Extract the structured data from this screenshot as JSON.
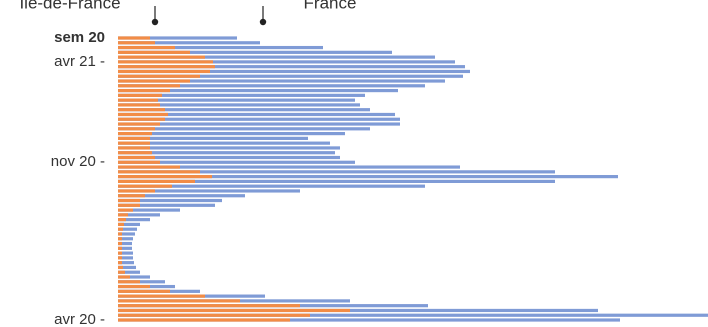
{
  "chart_data": {
    "type": "bar",
    "orientation": "horizontal",
    "categories": [
      "sem 20",
      null,
      null,
      null,
      null,
      "avr 21 -",
      null,
      null,
      null,
      null,
      null,
      null,
      null,
      null,
      null,
      null,
      null,
      null,
      null,
      null,
      null,
      null,
      null,
      null,
      null,
      null,
      "nov 20 -",
      null,
      null,
      null,
      null,
      null,
      null,
      null,
      null,
      null,
      null,
      null,
      null,
      null,
      null,
      null,
      null,
      null,
      null,
      null,
      null,
      null,
      null,
      null,
      null,
      null,
      null,
      null,
      null,
      null,
      null,
      null,
      null,
      "avr 20 -"
    ],
    "series": [
      {
        "name": "France",
        "color": "#7f9bd6",
        "values": [
          119,
          142,
          205,
          274,
          317,
          337,
          347,
          352,
          345,
          327,
          307,
          280,
          247,
          237,
          242,
          252,
          277,
          282,
          282,
          252,
          227,
          190,
          212,
          222,
          217,
          222,
          237,
          342,
          437,
          500,
          437,
          307,
          182,
          127,
          104,
          97,
          62,
          42,
          32,
          22,
          19,
          17,
          15,
          14,
          14,
          15,
          15,
          16,
          18,
          22,
          32,
          47,
          57,
          82,
          147,
          232,
          310,
          480,
          590,
          502
        ]
      },
      {
        "name": "Île-de-France",
        "color": "#f28c46",
        "values": [
          32,
          37,
          57,
          72,
          87,
          95,
          97,
          92,
          82,
          72,
          62,
          52,
          44,
          40,
          42,
          47,
          50,
          47,
          42,
          37,
          34,
          32,
          32,
          32,
          34,
          37,
          42,
          62,
          82,
          94,
          77,
          54,
          37,
          27,
          22,
          22,
          15,
          10,
          8,
          6,
          5,
          4,
          4,
          4,
          4,
          4,
          4,
          4,
          5,
          7,
          12,
          22,
          32,
          52,
          87,
          122,
          182,
          232,
          192,
          172
        ]
      }
    ]
  }
}
